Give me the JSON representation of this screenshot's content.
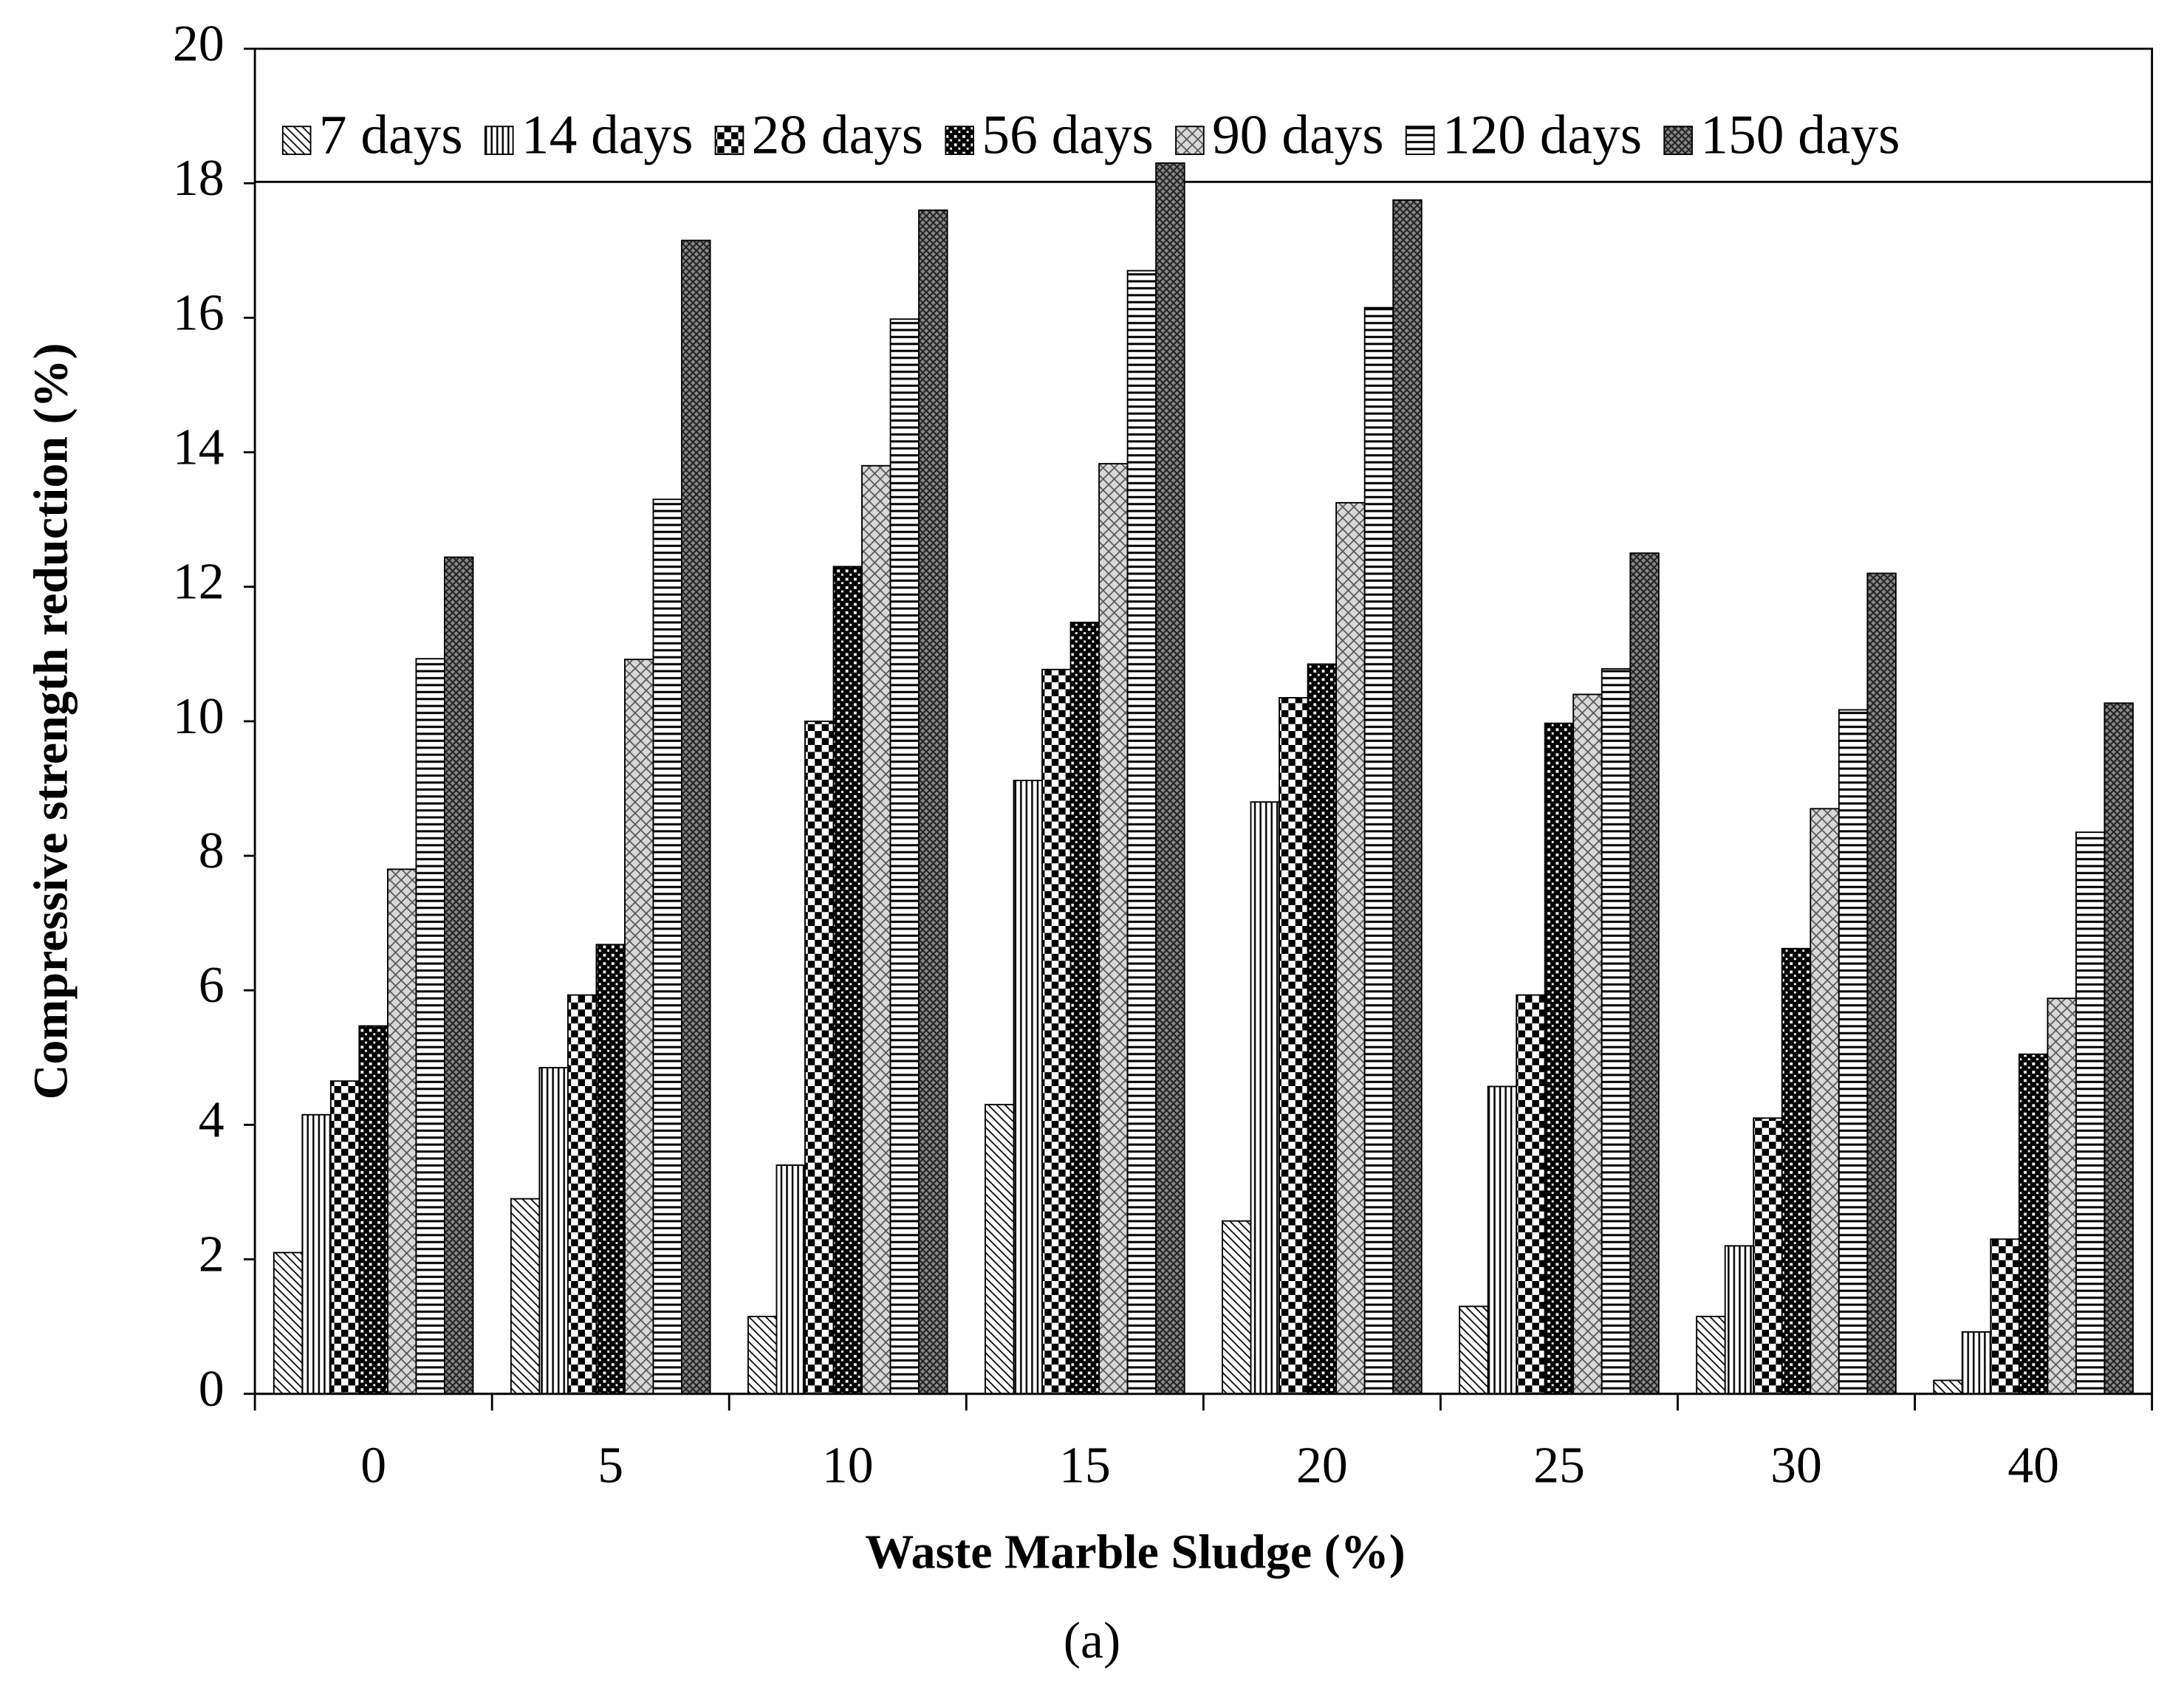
{
  "chart_data": {
    "type": "bar",
    "categories": [
      "0",
      "5",
      "10",
      "15",
      "20",
      "25",
      "30",
      "40"
    ],
    "x_label": "Waste Marble Sludge (%)",
    "y_label": "Compressive strength reduction (%)",
    "caption": "(a)",
    "ylim": [
      0,
      20
    ],
    "yticks": [
      0,
      2,
      4,
      6,
      8,
      10,
      12,
      14,
      16,
      18,
      20
    ],
    "legend": "top",
    "series": [
      {
        "name": "7 days",
        "pattern": "diagonal",
        "values": [
          2.1,
          2.9,
          1.15,
          4.3,
          2.57,
          1.3,
          1.15,
          0.2
        ]
      },
      {
        "name": "14 days",
        "pattern": "vertical",
        "values": [
          4.15,
          4.85,
          3.4,
          9.12,
          8.8,
          4.57,
          2.2,
          0.92
        ]
      },
      {
        "name": "28 days",
        "pattern": "checker",
        "values": [
          4.65,
          5.93,
          10.0,
          10.77,
          10.35,
          5.93,
          4.1,
          2.3
        ]
      },
      {
        "name": "56 days",
        "pattern": "dense-checker",
        "values": [
          5.47,
          6.68,
          12.3,
          11.47,
          10.85,
          9.97,
          6.62,
          5.05
        ]
      },
      {
        "name": "90 days",
        "pattern": "light-crosshatch",
        "values": [
          7.8,
          10.92,
          13.8,
          13.83,
          13.25,
          10.4,
          8.7,
          5.88
        ]
      },
      {
        "name": "120 days",
        "pattern": "horizontal",
        "values": [
          10.93,
          13.3,
          15.98,
          16.7,
          16.15,
          10.78,
          10.17,
          8.35
        ]
      },
      {
        "name": "150 days",
        "pattern": "dark-crosshatch",
        "values": [
          12.44,
          17.15,
          17.6,
          18.3,
          17.75,
          12.5,
          12.2,
          10.27
        ]
      }
    ]
  }
}
